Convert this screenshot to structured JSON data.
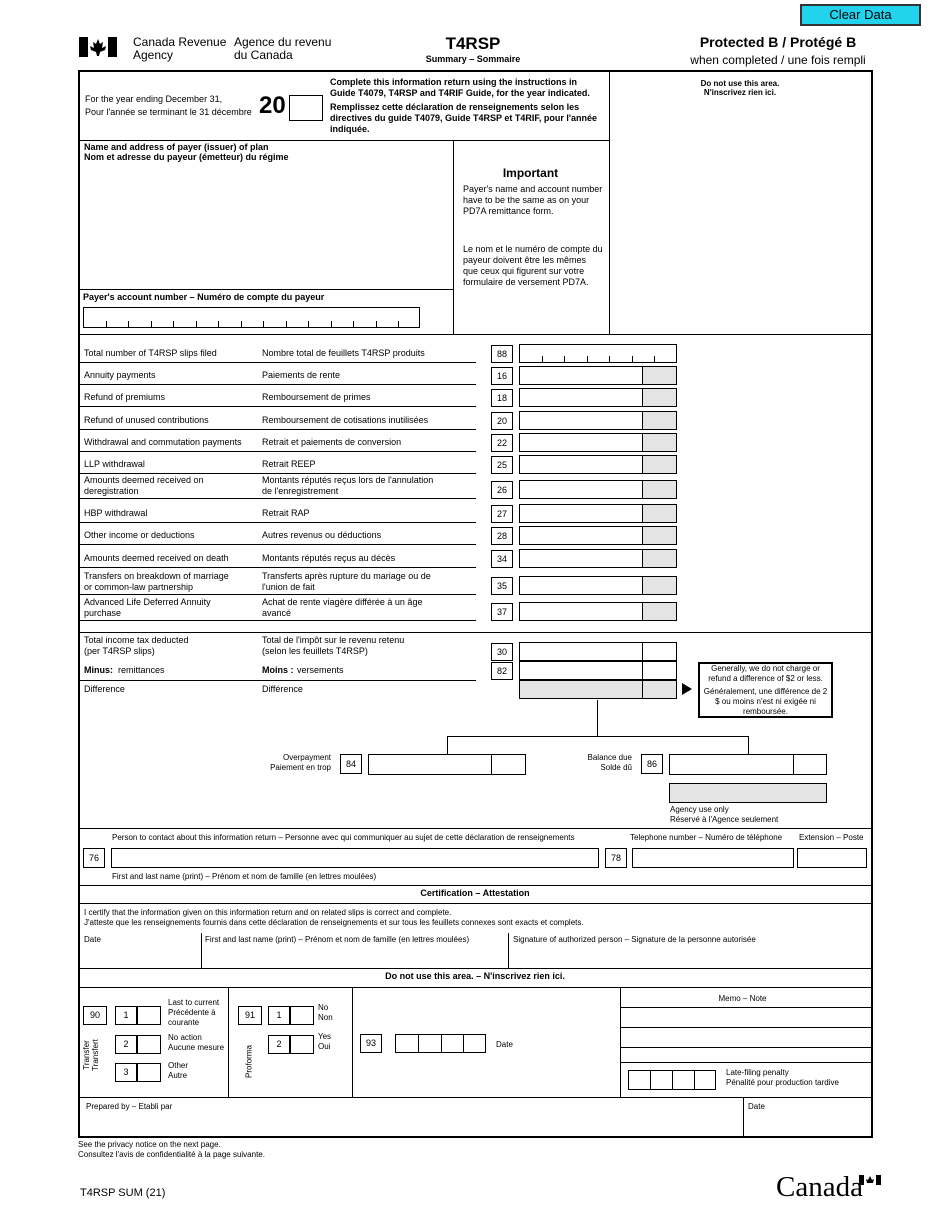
{
  "header": {
    "button": "Clear Data",
    "agency_en": "Canada Revenue\nAgency",
    "agency_fr": "Agence du revenu\ndu Canada",
    "title": "T4RSP",
    "subtitle": "Summary – Sommaire",
    "protected": "Protected B / Protégé B",
    "protected_note": "when completed / une fois rempli"
  },
  "year": {
    "label_en": "For the year ending December 31,",
    "label_fr": "Pour l'année se terminant le 31 décembre",
    "prefix": "20",
    "instructions_en": "Complete this information return using the instructions in Guide T4079, T4RSP and T4RIF Guide, for the year indicated.",
    "instructions_fr": "Remplissez cette déclaration de renseignements selon les directives du guide T4079, Guide T4RSP et T4RIF, pour l'année indiquée.",
    "office_en": "Do not use this area.",
    "office_fr": "N'inscrivez rien ici."
  },
  "payer": {
    "name_en": "Name and address of payer (issuer) of plan",
    "name_fr": "Nom et adresse du payeur (émetteur) du régime",
    "important_title": "Important",
    "important_en": "Payer's name and account number have to be the same as on your PD7A remittance form.",
    "important_fr": "Le nom et le numéro de compte du payeur doivent être les mêmes que ceux qui figurent sur votre formulaire de versement PD7A.",
    "account": "Payer's account number – Numéro de compte du payeur"
  },
  "amounts": [
    {
      "en": "Total number of T4RSP slips filed",
      "fr": "Nombre total de feuillets T4RSP produits",
      "box": "88"
    },
    {
      "en": "Annuity payments",
      "fr": "Paiements de rente",
      "box": "16"
    },
    {
      "en": "Refund of premiums",
      "fr": "Remboursement de primes",
      "box": "18"
    },
    {
      "en": "Refund of unused contributions",
      "fr": "Remboursement de cotisations inutilisées",
      "box": "20"
    },
    {
      "en": "Withdrawal and commutation payments",
      "fr": "Retrait et paiements de conversion",
      "box": "22"
    },
    {
      "en": "LLP withdrawal",
      "fr": "Retrait REEP",
      "box": "25"
    },
    {
      "en": "Amounts deemed received on\nderegistration",
      "fr": "Montants réputés reçus lors de l'annulation\nde l'enregistrement",
      "box": "26"
    },
    {
      "en": "HBP withdrawal",
      "fr": "Retrait RAP",
      "box": "27"
    },
    {
      "en": "Other income or deductions",
      "fr": "Autres revenus ou déductions",
      "box": "28"
    },
    {
      "en": "Amounts deemed received on death",
      "fr": "Montants réputés reçus au décès",
      "box": "34"
    },
    {
      "en": "Transfers on breakdown of marriage\nor common-law partnership",
      "fr": "Transferts après rupture du mariage ou de\nl'union de fait",
      "box": "35"
    },
    {
      "en": "Advanced Life Deferred Annuity\npurchase",
      "fr": "Achat de rente viagère différée à un âge\navancé",
      "box": "37"
    }
  ],
  "tax": {
    "deducted_en": "Total income tax deducted\n(per T4RSP slips)",
    "deducted_fr": "Total de l'impôt sur le revenu retenu\n(selon les feuillets T4RSP)",
    "deducted_box": "30",
    "minus_en_bold": "Minus:",
    "minus_en": "remittances",
    "minus_fr_bold": "Moins :",
    "minus_fr": "versements",
    "minus_box": "82",
    "difference_en": "Difference",
    "difference_fr": "Différence",
    "note_en": "Generally, we do not charge or refund a difference of $2 or less.",
    "note_fr": "Généralement, une différence de 2 $ ou moins n'est ni exigée ni remboursée.",
    "overpayment": "Overpayment\nPaiement en trop",
    "overpayment_box": "84",
    "balance": "Balance due\nSolde dû",
    "balance_box": "86",
    "agency_use": "Agency use only\nRéservé à l'Agence seulement"
  },
  "contact": {
    "person": "Person to contact about this information return – Personne avec qui communiquer au sujet de cette déclaration de renseignements",
    "phone": "Telephone number – Numéro de téléphone",
    "extension": "Extension – Poste",
    "name_box": "76",
    "phone_box": "78",
    "name_note": "First and last name (print) – Prénom et nom de famille (en lettres moulées)"
  },
  "certification": {
    "title": "Certification – Attestation",
    "text_en": "I certify that the information given on this information return and on related slips is correct and complete.",
    "text_fr": "J'atteste que les renseignements fournis dans cette déclaration de renseignements et sur tous les feuillets connexes sont exacts et complets.",
    "date": "Date",
    "name": "First and last name (print) – Prénom et nom de famille (en lettres moulées)",
    "signature": "Signature of authorized person – Signature de la personne autorisée"
  },
  "office": {
    "title": "Do not use this area. – N'inscrivez rien ici.",
    "transfer_box": "90",
    "transfer_label": "Transfer\nTransfert",
    "transfer_options": [
      {
        "code": "1",
        "label": "Last to current\nPrécédente à\ncourante"
      },
      {
        "code": "2",
        "label": "No action\nAucune mesure"
      },
      {
        "code": "3",
        "label": "Other\nAutre"
      }
    ],
    "proforma_box": "91",
    "proforma_label": "Proforma",
    "proforma_options": [
      {
        "code": "1",
        "label": "No\nNon"
      },
      {
        "code": "2",
        "label": "Yes\nOui"
      }
    ],
    "box93": "93",
    "date": "Date",
    "memo": "Memo – Note",
    "penalty": "Late-filing penalty\nPénalité pour production tardive",
    "prepared": "Prepared by – Etabli par",
    "prepared_date": "Date"
  },
  "footer": {
    "privacy_en": "See the privacy notice on the next page.",
    "privacy_fr": "Consultez l'avis de confidentialité à la page suivante.",
    "form_id": "T4RSP SUM (21)",
    "wordmark": "Canada"
  }
}
